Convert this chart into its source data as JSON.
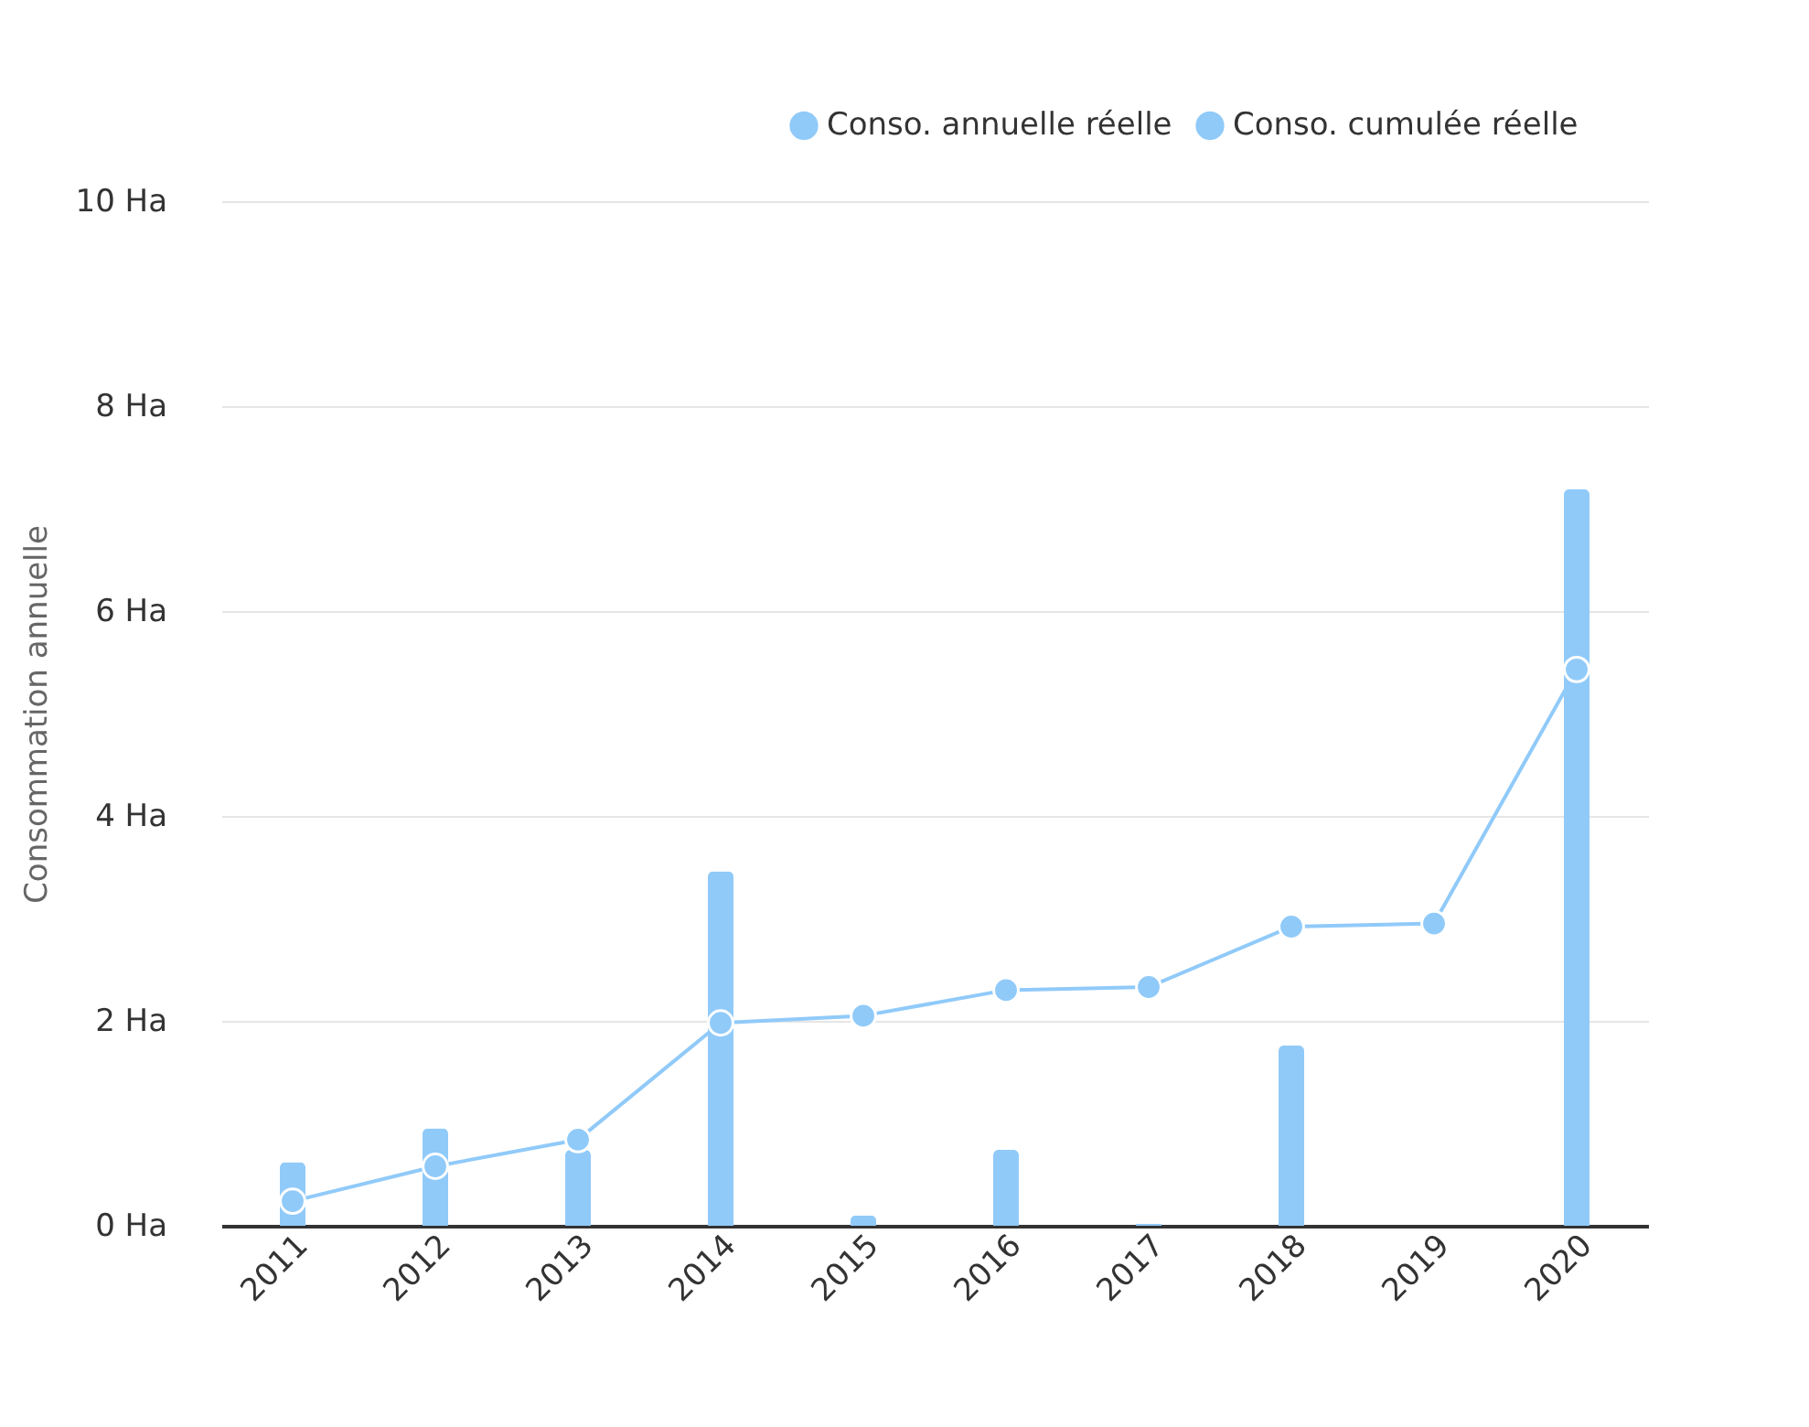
{
  "chart_data": {
    "type": "bar",
    "ylabel": "Consommation annuelle",
    "categories": [
      "2011",
      "2012",
      "2013",
      "2014",
      "2015",
      "2016",
      "2017",
      "2018",
      "2019",
      "2020"
    ],
    "series": [
      {
        "name": "Conso. annuelle réelle",
        "color": "#90caf9",
        "values": [
          0.62,
          0.95,
          0.74,
          3.46,
          0.1,
          0.74,
          0.02,
          1.76,
          0,
          7.19
        ]
      },
      {
        "name": "Conso. cumulée réelle",
        "color": "#90caf9",
        "type": "line",
        "values": [
          0.24,
          0.58,
          0.84,
          1.98,
          2.05,
          2.3,
          2.33,
          2.92,
          2.95,
          5.43
        ]
      }
    ],
    "ylim": [
      0,
      10
    ],
    "yticks": [
      {
        "value": 0,
        "label": "0 Ha"
      },
      {
        "value": 2,
        "label": "2 Ha"
      },
      {
        "value": 4,
        "label": "4 Ha"
      },
      {
        "value": 6,
        "label": "6 Ha"
      },
      {
        "value": 8,
        "label": "8 Ha"
      },
      {
        "value": 10,
        "label": "10 Ha"
      }
    ],
    "grid": "y",
    "legend": "top right",
    "marker": "circle"
  }
}
